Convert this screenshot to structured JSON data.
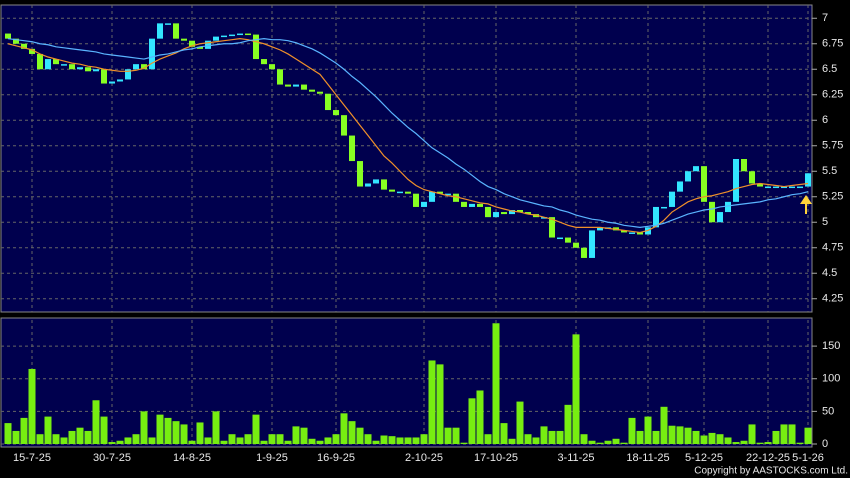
{
  "chart_data": [
    {
      "type": "candlestick",
      "open": [
        6.85,
        6.8,
        6.75,
        6.7,
        6.65,
        6.5,
        6.6,
        6.55,
        6.55,
        6.5,
        6.52,
        6.48,
        6.5,
        6.36,
        6.38,
        6.4,
        6.5,
        6.55,
        6.5,
        6.8,
        6.95,
        6.95,
        6.8,
        6.78,
        6.72,
        6.7,
        6.78,
        6.82,
        6.83,
        6.84,
        6.85,
        6.84,
        6.6,
        6.55,
        6.5,
        6.35,
        6.33,
        6.35,
        6.3,
        6.28,
        6.26,
        6.1,
        6.05,
        5.85,
        5.6,
        5.35,
        5.38,
        5.42,
        5.32,
        5.3,
        5.3,
        5.28,
        5.15,
        5.2,
        5.3,
        5.28,
        5.28,
        5.2,
        5.15,
        5.18,
        5.15,
        5.05,
        5.1,
        5.08,
        5.12,
        5.1,
        5.08,
        5.05,
        5.05,
        4.85,
        4.85,
        4.8,
        4.75,
        4.65,
        4.92,
        4.95,
        4.95,
        4.92,
        4.9,
        4.9,
        4.88,
        4.95,
        5.15,
        5.15,
        5.3,
        5.4,
        5.5,
        5.55,
        5.2,
        5.0,
        5.1,
        5.2,
        5.62,
        5.5,
        5.38,
        5.35,
        5.35,
        5.35,
        5.35,
        5.35,
        5.35
      ],
      "close": [
        6.8,
        6.75,
        6.7,
        6.65,
        6.5,
        6.6,
        6.55,
        6.55,
        6.5,
        6.52,
        6.48,
        6.5,
        6.36,
        6.38,
        6.4,
        6.5,
        6.55,
        6.5,
        6.8,
        6.95,
        6.95,
        6.8,
        6.78,
        6.72,
        6.7,
        6.78,
        6.82,
        6.83,
        6.84,
        6.85,
        6.84,
        6.6,
        6.55,
        6.5,
        6.35,
        6.33,
        6.35,
        6.3,
        6.28,
        6.26,
        6.1,
        6.05,
        5.85,
        5.6,
        5.35,
        5.38,
        5.42,
        5.32,
        5.3,
        5.3,
        5.28,
        5.15,
        5.2,
        5.3,
        5.28,
        5.28,
        5.2,
        5.15,
        5.18,
        5.15,
        5.05,
        5.1,
        5.08,
        5.12,
        5.1,
        5.08,
        5.05,
        5.05,
        4.85,
        4.85,
        4.8,
        4.75,
        4.65,
        4.92,
        4.95,
        4.95,
        4.92,
        4.9,
        4.9,
        4.88,
        4.95,
        5.15,
        5.15,
        5.3,
        5.4,
        5.5,
        5.55,
        5.2,
        5.0,
        5.1,
        5.2,
        5.62,
        5.5,
        5.38,
        5.35,
        5.35,
        5.35,
        5.35,
        5.35,
        5.35,
        5.48
      ],
      "up_color": "#33e6ff",
      "down_color": "#88ff22",
      "lines": [
        {
          "color": "#f0902a",
          "values": [
            6.75,
            6.73,
            6.71,
            6.69,
            6.65,
            6.62,
            6.6,
            6.58,
            6.56,
            6.55,
            6.53,
            6.52,
            6.5,
            6.49,
            6.48,
            6.48,
            6.49,
            6.51,
            6.56,
            6.6,
            6.63,
            6.66,
            6.7,
            6.73,
            6.75,
            6.76,
            6.77,
            6.78,
            6.79,
            6.8,
            6.79,
            6.77,
            6.75,
            6.72,
            6.69,
            6.65,
            6.6,
            6.55,
            6.5,
            6.45,
            6.35,
            6.25,
            6.15,
            6.05,
            5.95,
            5.85,
            5.75,
            5.65,
            5.58,
            5.5,
            5.42,
            5.36,
            5.32,
            5.3,
            5.28,
            5.26,
            5.25,
            5.23,
            5.21,
            5.19,
            5.18,
            5.15,
            5.13,
            5.11,
            5.1,
            5.08,
            5.07,
            5.05,
            5.03,
            5.0,
            4.97,
            4.95,
            4.95,
            4.95,
            4.95,
            4.94,
            4.93,
            4.92,
            4.91,
            4.9,
            4.92,
            4.96,
            5.02,
            5.1,
            5.15,
            5.2,
            5.23,
            5.25,
            5.26,
            5.28,
            5.3,
            5.33,
            5.35,
            5.37,
            5.38,
            5.37,
            5.36,
            5.35,
            5.36,
            5.37,
            5.38
          ]
        },
        {
          "color": "#5ab4ff",
          "values": [
            6.8,
            6.79,
            6.78,
            6.77,
            6.75,
            6.74,
            6.72,
            6.71,
            6.7,
            6.69,
            6.68,
            6.67,
            6.65,
            6.64,
            6.63,
            6.62,
            6.61,
            6.6,
            6.62,
            6.64,
            6.65,
            6.67,
            6.69,
            6.7,
            6.72,
            6.73,
            6.74,
            6.75,
            6.75,
            6.76,
            6.78,
            6.79,
            6.8,
            6.79,
            6.79,
            6.78,
            6.76,
            6.73,
            6.7,
            6.66,
            6.61,
            6.56,
            6.5,
            6.43,
            6.37,
            6.3,
            6.23,
            6.15,
            6.07,
            6.0,
            5.93,
            5.87,
            5.8,
            5.73,
            5.68,
            5.63,
            5.57,
            5.52,
            5.46,
            5.4,
            5.35,
            5.32,
            5.28,
            5.25,
            5.22,
            5.2,
            5.18,
            5.16,
            5.15,
            5.12,
            5.1,
            5.07,
            5.05,
            5.03,
            5.02,
            5.0,
            4.99,
            4.97,
            4.96,
            4.95,
            4.96,
            4.97,
            4.99,
            5.02,
            5.05,
            5.08,
            5.1,
            5.12,
            5.13,
            5.15,
            5.16,
            5.17,
            5.18,
            5.19,
            5.2,
            5.22,
            5.23,
            5.25,
            5.27,
            5.28,
            5.3
          ]
        }
      ],
      "ylim": [
        4.12,
        7.13
      ],
      "yticks": [
        4.25,
        4.5,
        4.75,
        5,
        5.25,
        5.5,
        5.75,
        6,
        6.25,
        6.5,
        6.75,
        7
      ],
      "grid": true
    },
    {
      "type": "bar",
      "categories": [
        null,
        null,
        null,
        "15-7-25",
        null,
        null,
        null,
        null,
        null,
        null,
        null,
        null,
        null,
        "30-7-25",
        null,
        null,
        null,
        null,
        null,
        null,
        null,
        null,
        null,
        "14-8-25",
        null,
        null,
        null,
        null,
        null,
        null,
        null,
        null,
        null,
        "1-9-25",
        null,
        null,
        null,
        null,
        null,
        null,
        null,
        "16-9-25",
        null,
        null,
        null,
        null,
        null,
        null,
        null,
        null,
        null,
        null,
        "2-10-25",
        null,
        null,
        null,
        null,
        null,
        null,
        null,
        null,
        "17-10-25",
        null,
        null,
        null,
        null,
        null,
        null,
        null,
        null,
        null,
        "3-11-25",
        null,
        null,
        null,
        null,
        null,
        null,
        null,
        null,
        "18-11-25",
        null,
        null,
        null,
        null,
        null,
        null,
        "5-12-25",
        null,
        null,
        null,
        null,
        null,
        null,
        null,
        "22-12-25",
        null,
        null,
        null,
        null,
        "5-1-26"
      ],
      "values": [
        32,
        20,
        40,
        115,
        15,
        42,
        15,
        10,
        20,
        25,
        20,
        67,
        42,
        3,
        5,
        10,
        15,
        50,
        10,
        45,
        40,
        35,
        30,
        5,
        33,
        10,
        50,
        5,
        15,
        10,
        15,
        45,
        5,
        15,
        15,
        5,
        27,
        25,
        8,
        5,
        10,
        15,
        47,
        35,
        25,
        15,
        5,
        13,
        12,
        10,
        10,
        10,
        15,
        128,
        122,
        25,
        25,
        2,
        70,
        82,
        15,
        185,
        32,
        8,
        65,
        15,
        10,
        27,
        20,
        20,
        60,
        168,
        15,
        5,
        2,
        5,
        8,
        2,
        40,
        20,
        42,
        20,
        57,
        28,
        27,
        25,
        20,
        13,
        17,
        15,
        10,
        3,
        5,
        30,
        2,
        3,
        20,
        30,
        30,
        2,
        25
      ],
      "color": "#77ee11",
      "ylim": [
        0,
        190
      ],
      "yticks": [
        0,
        50,
        100,
        150
      ],
      "grid": true
    }
  ],
  "footer": "Copyright by AASTOCKS.com Ltd."
}
